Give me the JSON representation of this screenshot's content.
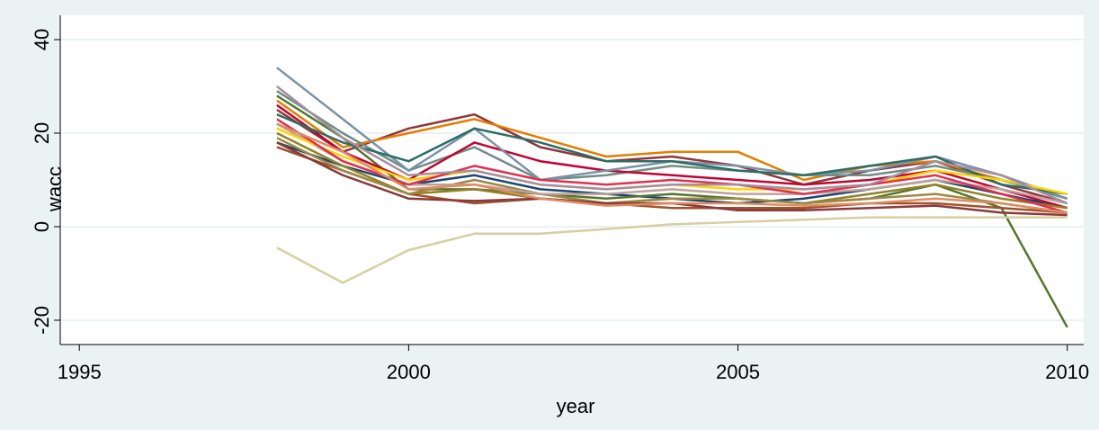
{
  "chart_data": {
    "type": "line",
    "xlabel": "year",
    "ylabel": "wacc",
    "x": [
      1998,
      1999,
      2000,
      2001,
      2002,
      2003,
      2004,
      2005,
      2006,
      2007,
      2008,
      2009,
      2010
    ],
    "xlim": [
      1994.71,
      2010.25
    ],
    "xticks": [
      1995,
      2000,
      2005,
      2010
    ],
    "ylim": [
      -25.2,
      45.2
    ],
    "yticks": [
      -20,
      0,
      20,
      40
    ],
    "grid": true,
    "series": [
      {
        "color": "#1a476f",
        "values": [
          18,
          13,
          9,
          11,
          8,
          7,
          6,
          5,
          6,
          8,
          10,
          7,
          4
        ]
      },
      {
        "color": "#90353b",
        "values": [
          25,
          16,
          21,
          24,
          17,
          14,
          15,
          13,
          9,
          12,
          14,
          9,
          5
        ]
      },
      {
        "color": "#55752f",
        "values": [
          28,
          19,
          8,
          8,
          7,
          6,
          7,
          6,
          5,
          6,
          9,
          4,
          -21.5
        ]
      },
      {
        "color": "#e37e00",
        "values": [
          27,
          17,
          20,
          23,
          19,
          15,
          16,
          16,
          10,
          13,
          14,
          10,
          6
        ]
      },
      {
        "color": "#6e8e84",
        "values": [
          29,
          20,
          12,
          17,
          10,
          11,
          13,
          12,
          11,
          11,
          13,
          10,
          6
        ]
      },
      {
        "color": "#c10534",
        "values": [
          26,
          16,
          10,
          18,
          14,
          12,
          11,
          10,
          9,
          10,
          12,
          8,
          4
        ]
      },
      {
        "color": "#938126",
        "values": [
          20,
          13,
          7,
          8,
          6,
          5,
          6,
          6,
          5,
          7,
          9,
          6,
          4
        ]
      },
      {
        "color": "#a0522d",
        "values": [
          17,
          12,
          7,
          5,
          6,
          5,
          4,
          4,
          4,
          5,
          5,
          4,
          3
        ]
      },
      {
        "color": "#7b92a8",
        "values": [
          34,
          23,
          12,
          21,
          10,
          12,
          14,
          13,
          11,
          12,
          15,
          11,
          6
        ]
      },
      {
        "color": "#2d6d66",
        "values": [
          24,
          18,
          14,
          21,
          18,
          14,
          14,
          12,
          11,
          13,
          15,
          9,
          7
        ]
      },
      {
        "color": "#9c8847",
        "values": [
          19,
          12,
          7,
          10,
          7,
          5,
          6,
          6,
          5,
          6,
          7,
          5,
          3
        ]
      },
      {
        "color": "#bfa19c",
        "values": [
          22,
          14,
          9,
          9,
          7,
          7,
          8,
          7,
          7,
          8,
          10,
          8,
          5
        ]
      },
      {
        "color": "#ffd200",
        "values": [
          21,
          15,
          10,
          12,
          9,
          8,
          9,
          8,
          8,
          9,
          12,
          10,
          7
        ]
      },
      {
        "color": "#e03050",
        "values": [
          23,
          14,
          9,
          13,
          10,
          9,
          10,
          9,
          7,
          9,
          11,
          7,
          3
        ]
      },
      {
        "color": "#d6cfa0",
        "values": [
          -4.5,
          -12,
          -5,
          -1.5,
          -1.5,
          -0.5,
          0.5,
          1,
          1.5,
          2,
          2,
          2,
          2
        ]
      },
      {
        "color": "#a48ea0",
        "values": [
          30,
          19,
          11,
          12,
          9,
          8,
          9,
          9,
          8,
          9,
          14,
          11,
          5
        ]
      },
      {
        "color": "#8b3a3a",
        "values": [
          18,
          11,
          6,
          5.5,
          6,
          5,
          5,
          3.5,
          3.5,
          4,
          4.5,
          3,
          2.5
        ]
      },
      {
        "color": "#e08c60",
        "values": [
          22,
          16,
          8,
          9,
          6,
          4.5,
          5,
          5,
          4.5,
          5,
          6,
          5,
          3
        ]
      }
    ]
  }
}
